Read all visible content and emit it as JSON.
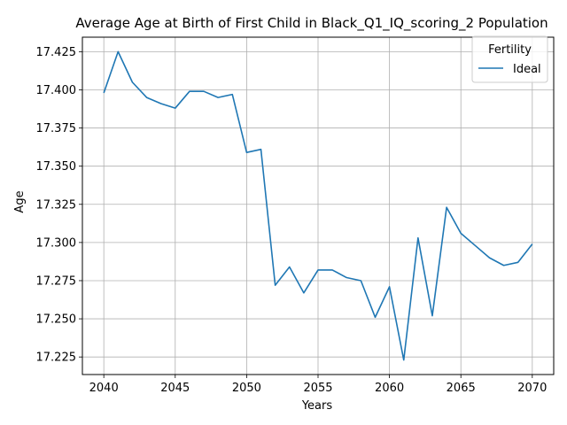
{
  "chart_data": {
    "type": "line",
    "title": "Average Age at Birth of First Child in Black_Q1_IQ_scoring_2 Population",
    "xlabel": "Years",
    "ylabel": "Age",
    "xlim": [
      2038.5,
      2071.5
    ],
    "ylim": [
      17.2135,
      17.4345
    ],
    "xticks": [
      2040,
      2045,
      2050,
      2055,
      2060,
      2065,
      2070
    ],
    "yticks": [
      17.225,
      17.25,
      17.275,
      17.3,
      17.325,
      17.35,
      17.375,
      17.4,
      17.425
    ],
    "ytick_labels": [
      "17.225",
      "17.250",
      "17.275",
      "17.300",
      "17.325",
      "17.350",
      "17.375",
      "17.400",
      "17.425"
    ],
    "grid": true,
    "legend": {
      "title": "Fertility",
      "placement": "top-right"
    },
    "series": [
      {
        "name": "Ideal",
        "color": "#1f77b4",
        "x": [
          2040,
          2041,
          2042,
          2043,
          2044,
          2045,
          2046,
          2047,
          2048,
          2049,
          2050,
          2051,
          2052,
          2053,
          2054,
          2055,
          2056,
          2057,
          2058,
          2059,
          2060,
          2061,
          2062,
          2063,
          2064,
          2065,
          2066,
          2067,
          2068,
          2069,
          2070
        ],
        "y": [
          17.398,
          17.425,
          17.405,
          17.395,
          17.391,
          17.388,
          17.399,
          17.399,
          17.395,
          17.397,
          17.359,
          17.361,
          17.272,
          17.284,
          17.267,
          17.282,
          17.282,
          17.277,
          17.275,
          17.251,
          17.271,
          17.223,
          17.303,
          17.252,
          17.323,
          17.306,
          17.298,
          17.29,
          17.285,
          17.287,
          17.299
        ]
      }
    ]
  }
}
